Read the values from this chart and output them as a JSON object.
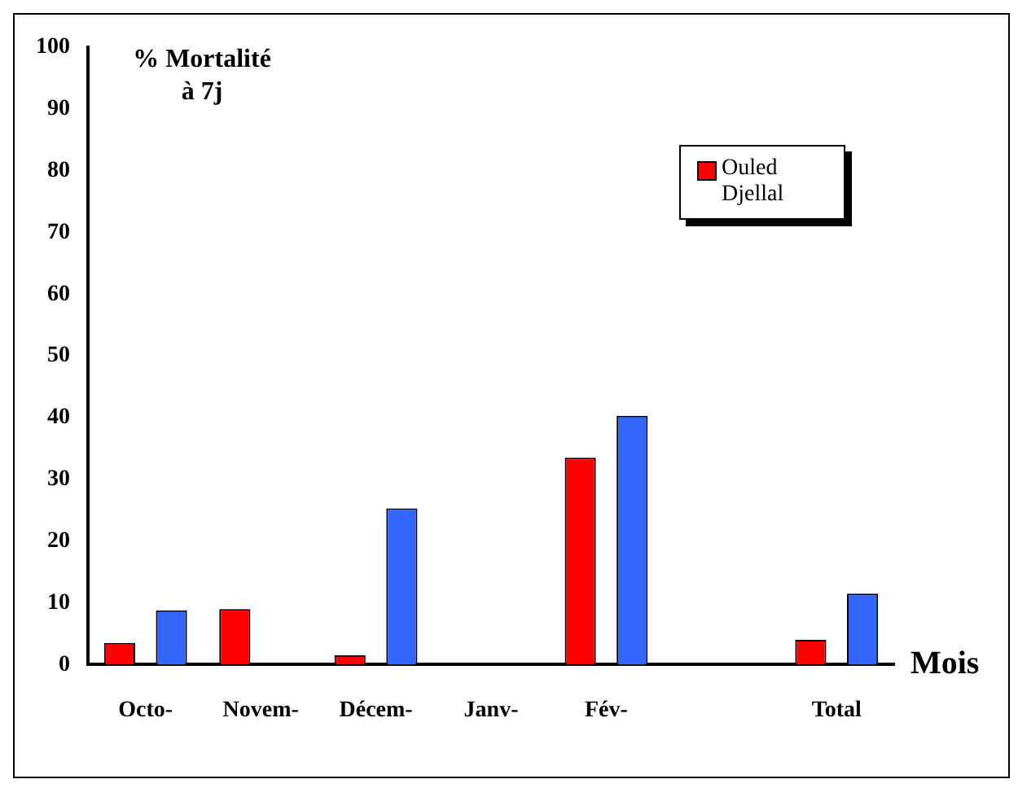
{
  "chart_data": {
    "type": "bar",
    "ylabel": "% Mortalité à 7j",
    "xlabel": "Mois",
    "categories": [
      "Octo-",
      "Novem-",
      "Décem-",
      "Janv-",
      "Fév-",
      null,
      "Total"
    ],
    "series": [
      {
        "name": "Ouled Djellal",
        "color": "#ff0000",
        "values": [
          3.5,
          9,
          1.5,
          0,
          33.5,
          null,
          4
        ]
      },
      {
        "color": "#3366ff",
        "values": [
          8.8,
          0,
          25.3,
          0,
          40.3,
          null,
          11.5
        ]
      }
    ],
    "ylim": [
      0,
      100
    ],
    "yticks": [
      0,
      10,
      20,
      30,
      40,
      50,
      60,
      70,
      80,
      90,
      100
    ],
    "grid": false,
    "legend": "top right"
  }
}
